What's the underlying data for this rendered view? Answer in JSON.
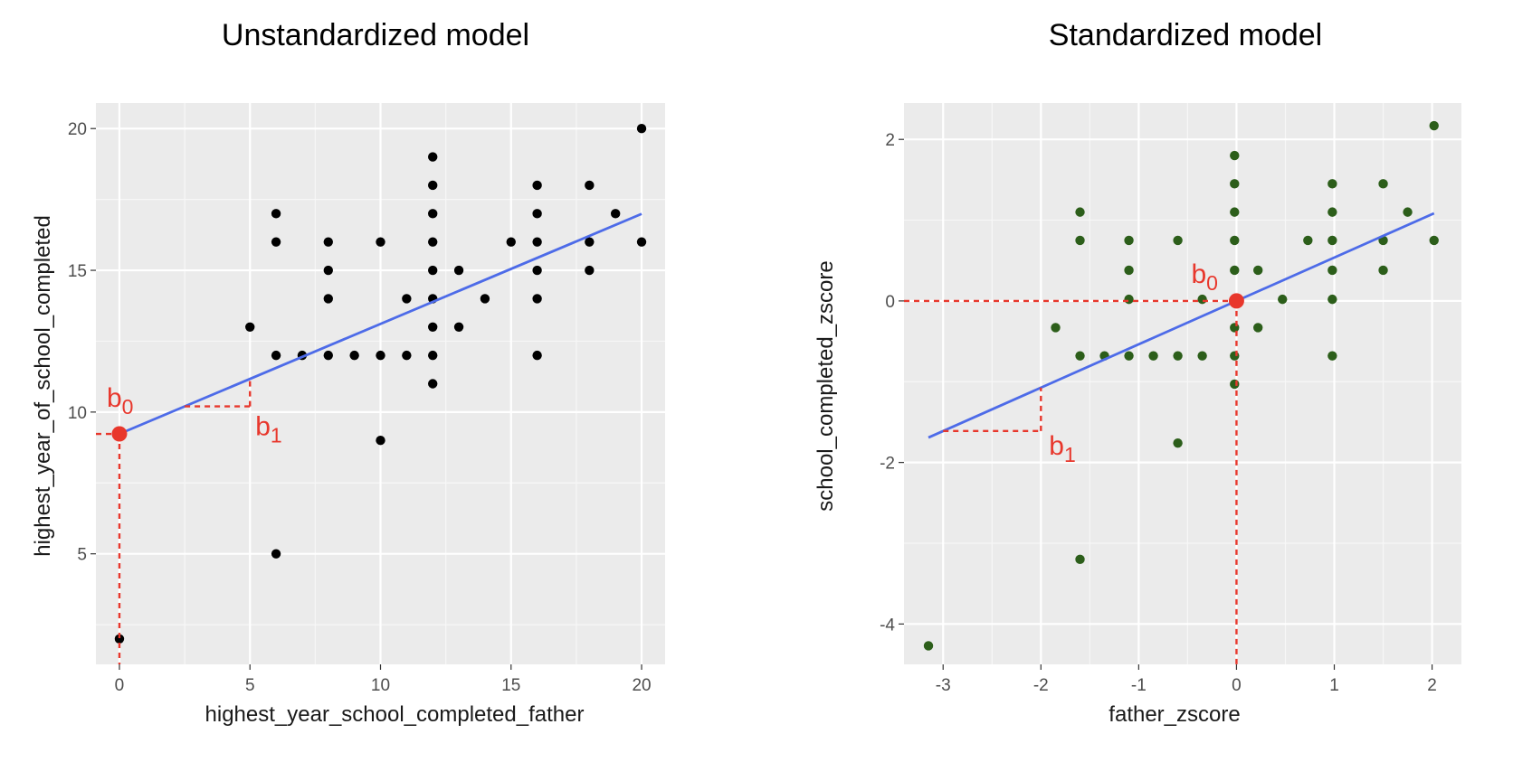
{
  "chart_data": [
    {
      "type": "scatter",
      "title": "Unstandardized model",
      "xlabel": "highest_year_school_completed_father",
      "ylabel": "highest_year_of_school_completed",
      "xlim": [
        -0.9,
        20.9
      ],
      "ylim": [
        1.1,
        20.9
      ],
      "xticks": [
        0,
        5,
        10,
        15,
        20
      ],
      "yticks": [
        5,
        10,
        15,
        20
      ],
      "xtick_labels": [
        "0",
        "5",
        "10",
        "15",
        "20"
      ],
      "ytick_labels": [
        "5",
        "10",
        "15",
        "20"
      ],
      "grid": true,
      "point_color": "#000000",
      "points": [
        [
          0,
          2
        ],
        [
          5,
          13
        ],
        [
          6,
          17
        ],
        [
          6,
          16
        ],
        [
          6,
          12
        ],
        [
          6,
          5
        ],
        [
          7,
          12
        ],
        [
          8,
          16
        ],
        [
          8,
          15
        ],
        [
          8,
          14
        ],
        [
          8,
          12
        ],
        [
          9,
          12
        ],
        [
          10,
          16
        ],
        [
          10,
          12
        ],
        [
          10,
          9
        ],
        [
          11,
          14
        ],
        [
          11,
          12
        ],
        [
          12,
          19
        ],
        [
          12,
          18
        ],
        [
          12,
          17
        ],
        [
          12,
          16
        ],
        [
          12,
          15
        ],
        [
          12,
          14
        ],
        [
          12,
          13
        ],
        [
          12,
          12
        ],
        [
          12,
          11
        ],
        [
          13,
          15
        ],
        [
          13,
          13
        ],
        [
          14,
          14
        ],
        [
          15,
          16
        ],
        [
          16,
          18
        ],
        [
          16,
          17
        ],
        [
          16,
          16
        ],
        [
          16,
          15
        ],
        [
          16,
          14
        ],
        [
          16,
          12
        ],
        [
          18,
          18
        ],
        [
          18,
          16
        ],
        [
          18,
          15
        ],
        [
          19,
          17
        ],
        [
          20,
          20
        ],
        [
          20,
          16
        ]
      ],
      "regression": {
        "intercept": 9.23,
        "slope": 0.388,
        "color": "#4d6be8"
      },
      "annotation_color": "#e8372c",
      "annotations": {
        "b0_label": "b",
        "b0_sub": "0",
        "b1_label": "b",
        "b1_sub": "1",
        "b0_point": [
          0,
          9.23
        ],
        "b1_triangle": {
          "x_from": 2.5,
          "x_to": 5.0
        }
      }
    },
    {
      "type": "scatter",
      "title": "Standardized model",
      "xlabel": "father_zscore",
      "ylabel": "school_completed_zscore",
      "xlim": [
        -3.4,
        2.3
      ],
      "ylim": [
        -4.5,
        2.45
      ],
      "xticks": [
        -3,
        -2,
        -1,
        0,
        1,
        2
      ],
      "yticks": [
        -4,
        -2,
        0,
        2
      ],
      "xtick_labels": [
        "-3",
        "-2",
        "-1",
        "0",
        "1",
        "2"
      ],
      "ytick_labels": [
        "-4",
        "-2",
        "0",
        "2"
      ],
      "grid": true,
      "point_color": "#2c5e1a",
      "points": [
        [
          -3.15,
          -4.27
        ],
        [
          -1.85,
          -0.33
        ],
        [
          -1.6,
          1.1
        ],
        [
          -1.6,
          0.75
        ],
        [
          -1.6,
          -0.68
        ],
        [
          -1.6,
          -3.2
        ],
        [
          -1.35,
          -0.68
        ],
        [
          -1.1,
          0.75
        ],
        [
          -1.1,
          0.38
        ],
        [
          -1.1,
          0.02
        ],
        [
          -1.1,
          -0.68
        ],
        [
          -0.85,
          -0.68
        ],
        [
          -0.6,
          0.75
        ],
        [
          -0.6,
          -0.68
        ],
        [
          -0.6,
          -1.76
        ],
        [
          -0.35,
          0.02
        ],
        [
          -0.35,
          -0.68
        ],
        [
          -0.02,
          1.8
        ],
        [
          -0.02,
          1.45
        ],
        [
          -0.02,
          1.1
        ],
        [
          -0.02,
          0.75
        ],
        [
          -0.02,
          0.38
        ],
        [
          -0.02,
          0.02
        ],
        [
          -0.02,
          -0.33
        ],
        [
          -0.02,
          -0.68
        ],
        [
          -0.02,
          -1.03
        ],
        [
          0.22,
          0.38
        ],
        [
          0.22,
          -0.33
        ],
        [
          0.47,
          0.02
        ],
        [
          0.73,
          0.75
        ],
        [
          0.98,
          1.45
        ],
        [
          0.98,
          1.1
        ],
        [
          0.98,
          0.75
        ],
        [
          0.98,
          0.38
        ],
        [
          0.98,
          0.02
        ],
        [
          0.98,
          -0.68
        ],
        [
          1.5,
          1.45
        ],
        [
          1.5,
          0.75
        ],
        [
          1.5,
          0.38
        ],
        [
          1.75,
          1.1
        ],
        [
          2.02,
          2.17
        ],
        [
          2.02,
          0.75
        ]
      ],
      "regression": {
        "intercept": 0.0,
        "slope": 0.537,
        "x_from": -3.15,
        "x_to": 2.02,
        "color": "#4d6be8"
      },
      "annotation_color": "#e8372c",
      "annotations": {
        "b0_label": "b",
        "b0_sub": "0",
        "b1_label": "b",
        "b1_sub": "1",
        "b0_point": [
          0,
          0
        ],
        "b1_triangle": {
          "x_from": -3.0,
          "x_to": -2.0
        }
      }
    }
  ]
}
